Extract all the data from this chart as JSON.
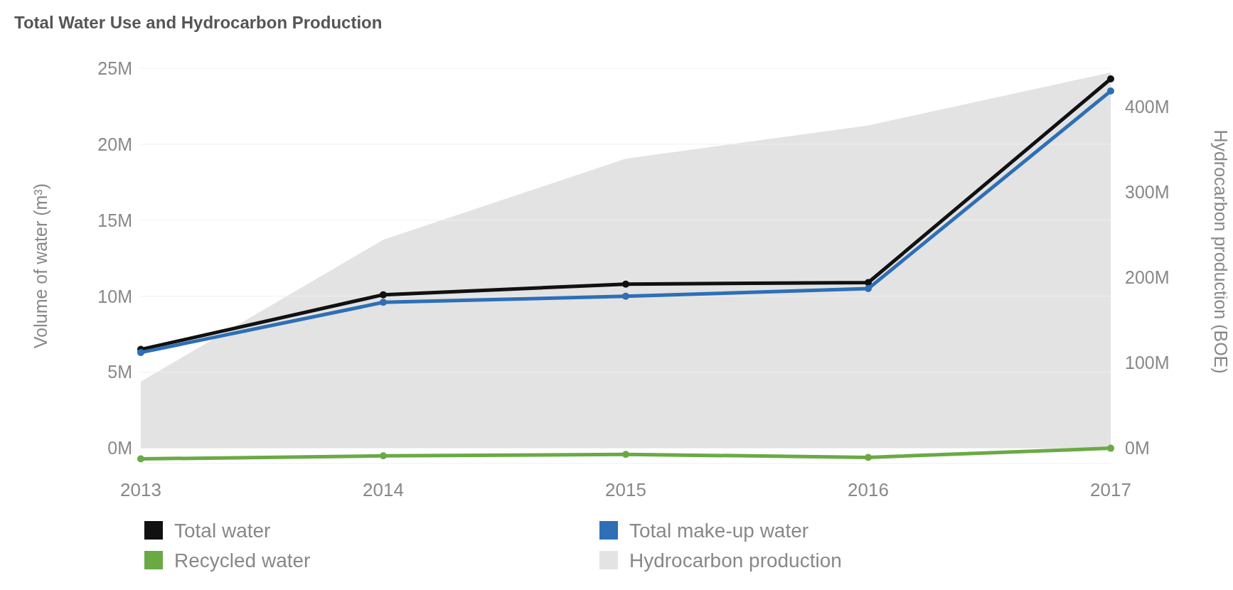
{
  "chart_data": {
    "type": "line",
    "title": "Total Water Use and Hydrocarbon Production",
    "ylabel": "Volume of water (m³)",
    "y2label": "Hydrocarbon production (BOE)",
    "categories": [
      "2013",
      "2014",
      "2015",
      "2016",
      "2017"
    ],
    "series": [
      {
        "name": "Hydrocarbon production",
        "type": "area",
        "axis": "y2",
        "marker": "none",
        "color": "#e3e3e3",
        "values": [
          78,
          244,
          339,
          378,
          440
        ]
      },
      {
        "name": "Total water",
        "color": "#111111",
        "values": [
          6.5,
          10.1,
          10.8,
          10.9,
          24.3
        ]
      },
      {
        "name": "Total make-up water",
        "color": "#2e6fb6",
        "values": [
          6.3,
          9.6,
          10.0,
          10.5,
          23.5
        ]
      },
      {
        "name": "Recycled water",
        "color": "#6aaa45",
        "values": [
          -0.7,
          -0.5,
          -0.4,
          -0.6,
          0
        ]
      }
    ],
    "ylim": [
      -1,
      25
    ],
    "yticks": [
      {
        "value": 0,
        "label": "0M"
      },
      {
        "value": 5,
        "label": "5M"
      },
      {
        "value": 10,
        "label": "10M"
      },
      {
        "value": 15,
        "label": "15M"
      },
      {
        "value": 20,
        "label": "20M"
      },
      {
        "value": 25,
        "label": "25M"
      }
    ],
    "y2lim": [
      -18,
      445
    ],
    "y2ticks": [
      {
        "value": 0,
        "label": "0M"
      },
      {
        "value": 100,
        "label": "100M"
      },
      {
        "value": 200,
        "label": "200M"
      },
      {
        "value": 300,
        "label": "300M"
      },
      {
        "value": 400,
        "label": "400M"
      }
    ],
    "grid": "y",
    "legend": "bottom",
    "marker": "circle",
    "line_style": "solid"
  }
}
